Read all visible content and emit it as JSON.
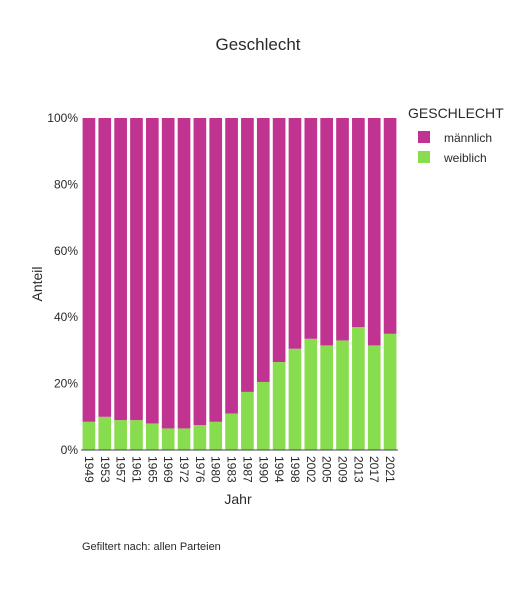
{
  "chart_data": {
    "type": "bar",
    "stacked": true,
    "title": "Geschlecht",
    "xlabel": "Jahr",
    "ylabel": "Anteil",
    "ylim": [
      0,
      100
    ],
    "yticks": [
      "0%",
      "20%",
      "40%",
      "60%",
      "80%",
      "100%"
    ],
    "grid": false,
    "legend": {
      "title": "GESCHLECHT",
      "position": "top-right"
    },
    "categories": [
      "1949",
      "1953",
      "1957",
      "1961",
      "1965",
      "1969",
      "1972",
      "1976",
      "1980",
      "1983",
      "1987",
      "1990",
      "1994",
      "1998",
      "2002",
      "2005",
      "2009",
      "2013",
      "2017",
      "2021"
    ],
    "series": [
      {
        "name": "weiblich",
        "color": "#88dd4e",
        "values": [
          8.5,
          10,
          9,
          9,
          8,
          6.5,
          6.5,
          7.5,
          8.5,
          11,
          17.5,
          20.5,
          26.5,
          30.5,
          33.5,
          31.5,
          33,
          37,
          31.5,
          35
        ]
      },
      {
        "name": "männlich",
        "color": "#c03390",
        "values": [
          91.5,
          90,
          91,
          91,
          92,
          93.5,
          93.5,
          92.5,
          91.5,
          89,
          82.5,
          79.5,
          73.5,
          69.5,
          66.5,
          68.5,
          67,
          63,
          68.5,
          65
        ]
      }
    ]
  },
  "footnote": "Gefiltert nach: allen Parteien"
}
